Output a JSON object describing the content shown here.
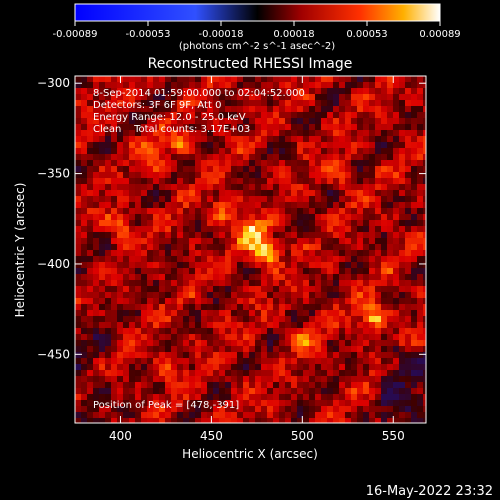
{
  "colorbar": {
    "ticks": [
      "-0.00089",
      "-0.00053",
      "-0.00018",
      "0.00018",
      "0.00053",
      "0.00089"
    ],
    "units": "(photons cm^-2 s^-1 asec^-2)",
    "range": [
      -0.00089,
      0.00089
    ]
  },
  "chart_data": {
    "type": "heatmap",
    "title": "Reconstructed RHESSI Image",
    "xlabel": "Heliocentric X (arcsec)",
    "ylabel": "Heliocentric Y (arcsec)",
    "xlim": [
      375,
      568
    ],
    "ylim": [
      -488,
      -296
    ],
    "xticks": [
      400,
      450,
      500,
      550
    ],
    "yticks": [
      -300,
      -350,
      -400,
      -450
    ],
    "xtick_labels": [
      "400",
      "450",
      "500",
      "550"
    ],
    "ytick_labels": [
      "−300",
      "−350",
      "−400",
      "−450"
    ],
    "grid": false,
    "colormap": "red-temperature",
    "annotations": [
      "8-Sep-2014 01:59:00.000 to 02:04:52.000",
      "Detectors: 3F 6F 9F, Att 0",
      "Energy Range: 12.0 - 25.0 keV",
      "Clean    Total counts: 3.17E+03"
    ],
    "peak_label": "Position of Peak = [478,-391]",
    "peak": [
      478,
      -391
    ],
    "sources": [
      {
        "x": 478,
        "y": -391,
        "intensity": 1.0
      },
      {
        "x": 470,
        "y": -380,
        "intensity": 0.65
      },
      {
        "x": 537,
        "y": -428,
        "intensity": 0.8
      },
      {
        "x": 455,
        "y": -368,
        "intensity": 0.55
      },
      {
        "x": 398,
        "y": -377,
        "intensity": 0.6
      },
      {
        "x": 415,
        "y": -338,
        "intensity": 0.5
      },
      {
        "x": 432,
        "y": -332,
        "intensity": 0.45
      },
      {
        "x": 520,
        "y": -348,
        "intensity": 0.4
      },
      {
        "x": 425,
        "y": -455,
        "intensity": 0.4
      },
      {
        "x": 500,
        "y": -440,
        "intensity": 0.35
      }
    ]
  },
  "footer": {
    "timestamp": "16-May-2022 23:32"
  }
}
